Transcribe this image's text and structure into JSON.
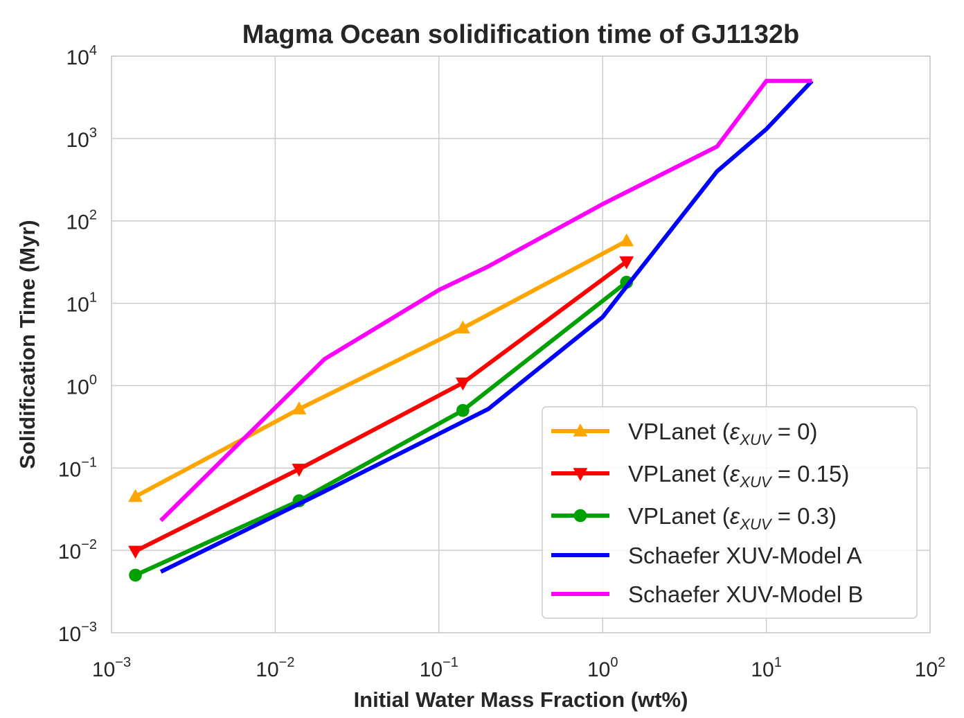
{
  "chart_data": {
    "type": "line",
    "title": "Magma Ocean solidification time of GJ1132b",
    "xlabel": "Initial Water Mass Fraction (wt%)",
    "ylabel": "Solidification Time (Myr)",
    "xscale": "log",
    "yscale": "log",
    "xlim": [
      0.001,
      100
    ],
    "ylim": [
      0.001,
      10000
    ],
    "x_ticks": [
      {
        "base": "10",
        "exp": "−3",
        "value": 0.001
      },
      {
        "base": "10",
        "exp": "−2",
        "value": 0.01
      },
      {
        "base": "10",
        "exp": "−1",
        "value": 0.1
      },
      {
        "base": "10",
        "exp": "0",
        "value": 1
      },
      {
        "base": "10",
        "exp": "1",
        "value": 10
      },
      {
        "base": "10",
        "exp": "2",
        "value": 100
      }
    ],
    "y_ticks": [
      {
        "base": "10",
        "exp": "−3",
        "value": 0.001
      },
      {
        "base": "10",
        "exp": "−2",
        "value": 0.01
      },
      {
        "base": "10",
        "exp": "−1",
        "value": 0.1
      },
      {
        "base": "10",
        "exp": "0",
        "value": 1
      },
      {
        "base": "10",
        "exp": "1",
        "value": 10
      },
      {
        "base": "10",
        "exp": "2",
        "value": 100
      },
      {
        "base": "10",
        "exp": "3",
        "value": 1000
      },
      {
        "base": "10",
        "exp": "4",
        "value": 10000
      }
    ],
    "grid": true,
    "legend_position": "lower-right",
    "series": [
      {
        "name": "VPLanet (ε_XUV = 0)",
        "label_prefix": "VPLanet (",
        "label_eps": "ε",
        "label_sub": "XUV",
        "label_suffix": " = 0)",
        "color": "#FFA500",
        "marker": "triangle-up",
        "x": [
          0.0014,
          0.014,
          0.14,
          1.4
        ],
        "y": [
          0.045,
          0.52,
          5.0,
          57
        ]
      },
      {
        "name": "VPLanet (ε_XUV = 0.15)",
        "label_prefix": "VPLanet (",
        "label_eps": "ε",
        "label_sub": "XUV",
        "label_suffix": " = 0.15)",
        "color": "#FF0000",
        "marker": "triangle-down",
        "x": [
          0.0014,
          0.014,
          0.14,
          1.4
        ],
        "y": [
          0.0098,
          0.097,
          1.08,
          32
        ]
      },
      {
        "name": "VPLanet (ε_XUV = 0.3)",
        "label_prefix": "VPLanet (",
        "label_eps": "ε",
        "label_sub": "XUV",
        "label_suffix": " = 0.3)",
        "color": "#00A000",
        "marker": "circle",
        "x": [
          0.0014,
          0.014,
          0.14,
          1.4
        ],
        "y": [
          0.005,
          0.04,
          0.5,
          18
        ]
      },
      {
        "name": "Schaefer XUV-Model A",
        "label_prefix": "Schaefer XUV-Model A",
        "color": "#0000FF",
        "marker": "none",
        "x": [
          0.002,
          0.02,
          0.1,
          0.2,
          1.0,
          1.5,
          5.0,
          10,
          19
        ],
        "y": [
          0.0055,
          0.052,
          0.26,
          0.52,
          6.8,
          19,
          400,
          1300,
          5000
        ]
      },
      {
        "name": "Schaefer XUV-Model B",
        "label_prefix": "Schaefer XUV-Model B",
        "color": "#FF00FF",
        "marker": "none",
        "x": [
          0.002,
          0.02,
          0.1,
          0.2,
          1.0,
          5.0,
          10,
          19
        ],
        "y": [
          0.023,
          2.1,
          14.5,
          28,
          160,
          800,
          5000,
          5000
        ]
      }
    ]
  }
}
